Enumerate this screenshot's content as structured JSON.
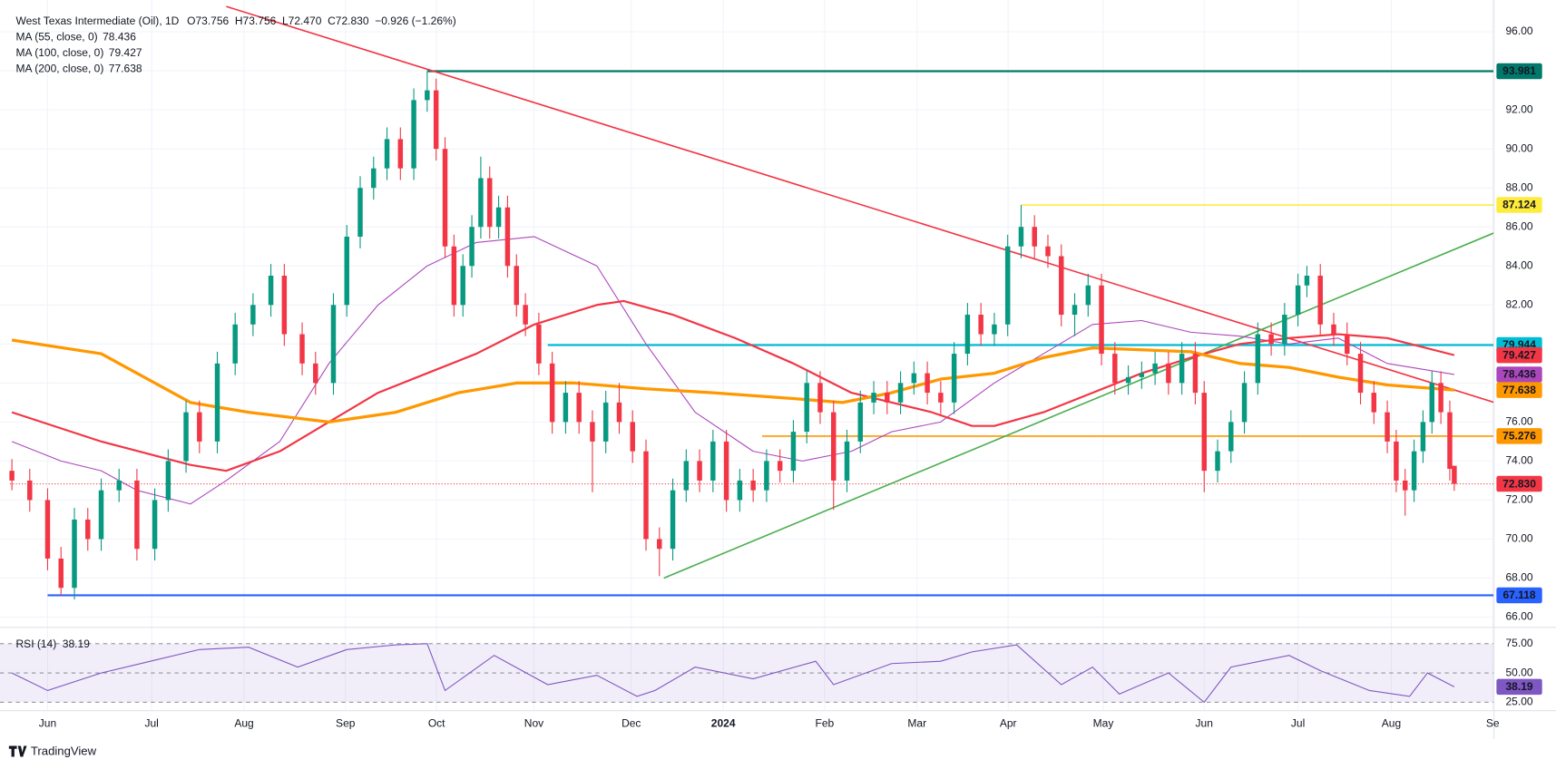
{
  "chart_data": {
    "type": "candlestick",
    "title": "West Texas Intermediate (Oil), 1D",
    "quote": "O73.756  H73.756  L72.470  C72.830  −0.926 (−1.26%)",
    "quote_color": "#f23645",
    "up_color": "#089981",
    "down_color": "#f23645",
    "grid": true,
    "xlim": [
      -8.44,
      323.78
    ],
    "ylim": [
      65.5,
      97.63
    ],
    "xticks": [
      {
        "value": 0,
        "label": "Jun"
      },
      {
        "value": 23.3,
        "label": "Jul"
      },
      {
        "value": 44,
        "label": "Aug"
      },
      {
        "value": 66.7,
        "label": "Sep"
      },
      {
        "value": 87.1,
        "label": "Oct"
      },
      {
        "value": 108.9,
        "label": "Nov"
      },
      {
        "value": 130.7,
        "label": "Dec"
      },
      {
        "value": 151.3,
        "label": "2024",
        "bold": true
      },
      {
        "value": 174,
        "label": "Feb"
      },
      {
        "value": 194.7,
        "label": "Mar"
      },
      {
        "value": 215.1,
        "label": "Apr"
      },
      {
        "value": 236.4,
        "label": "May"
      },
      {
        "value": 259,
        "label": "Jun"
      },
      {
        "value": 280,
        "label": "Jul"
      },
      {
        "value": 300.9,
        "label": "Aug"
      },
      {
        "value": 323.6,
        "label": "Se"
      }
    ],
    "yticks": [
      {
        "value": 66,
        "label": "66.00"
      },
      {
        "value": 68,
        "label": "68.00"
      },
      {
        "value": 70,
        "label": "70.00"
      },
      {
        "value": 72,
        "label": "72.00"
      },
      {
        "value": 74,
        "label": "74.00"
      },
      {
        "value": 76,
        "label": "76.00"
      },
      {
        "value": 78,
        "label": "78.00"
      },
      {
        "value": 80,
        "label": "80.00"
      },
      {
        "value": 82,
        "label": "82.00"
      },
      {
        "value": 84,
        "label": "84.00"
      },
      {
        "value": 86,
        "label": "86.00"
      },
      {
        "value": 88,
        "label": "88.00"
      },
      {
        "value": 90,
        "label": "90.00"
      },
      {
        "value": 92,
        "label": "92.00"
      },
      {
        "value": 94,
        "label": "94.00"
      },
      {
        "value": 96,
        "label": "96.00"
      }
    ],
    "candles": {
      "x": [
        -8,
        -4,
        0,
        3,
        6,
        9,
        12,
        16,
        20,
        24,
        27,
        31,
        34,
        38,
        42,
        46,
        50,
        53,
        57,
        60,
        64,
        67,
        70,
        73,
        76,
        79,
        82,
        85,
        87,
        89,
        91,
        93,
        95,
        97,
        99,
        101,
        103,
        105,
        107,
        110,
        113,
        116,
        119,
        122,
        125,
        128,
        131,
        134,
        137,
        140,
        143,
        146,
        149,
        152,
        155,
        158,
        161,
        164,
        167,
        170,
        173,
        176,
        179,
        182,
        185,
        188,
        191,
        194,
        197,
        200,
        203,
        206,
        209,
        212,
        215,
        218,
        221,
        224,
        227,
        230,
        233,
        236,
        239,
        242,
        245,
        248,
        251,
        254,
        257,
        259,
        262,
        265,
        268,
        271,
        274,
        277,
        280,
        282,
        285,
        288,
        291,
        294,
        297,
        300,
        302,
        304,
        306,
        308,
        310,
        312,
        314,
        315
      ],
      "ohlc": [
        [
          73.5,
          74.1,
          72.5,
          73
        ],
        [
          73,
          73.6,
          71.4,
          72
        ],
        [
          72,
          72.6,
          68.4,
          69
        ],
        [
          69,
          69.6,
          67.1,
          67.5
        ],
        [
          67.5,
          71.6,
          66.9,
          71
        ],
        [
          71,
          71.6,
          69.4,
          70
        ],
        [
          70,
          73.1,
          69.4,
          72.5
        ],
        [
          72.5,
          73.6,
          71.9,
          73
        ],
        [
          73,
          73.6,
          68.9,
          69.5
        ],
        [
          69.5,
          72.6,
          68.9,
          72
        ],
        [
          72,
          74.6,
          71.4,
          74
        ],
        [
          74,
          77.1,
          73.4,
          76.5
        ],
        [
          76.5,
          77.1,
          74.4,
          75
        ],
        [
          75,
          79.6,
          74.4,
          79
        ],
        [
          79,
          81.6,
          78.4,
          81
        ],
        [
          81,
          82.6,
          80.4,
          82
        ],
        [
          82,
          84.1,
          81.4,
          83.5
        ],
        [
          83.5,
          84.1,
          79.9,
          80.5
        ],
        [
          80.5,
          81.1,
          78.4,
          79
        ],
        [
          79,
          79.6,
          77.4,
          78
        ],
        [
          78,
          82.6,
          77.4,
          82
        ],
        [
          82,
          86.1,
          81.4,
          85.5
        ],
        [
          85.5,
          88.6,
          84.9,
          88
        ],
        [
          88,
          89.6,
          87.4,
          89
        ],
        [
          89,
          91.1,
          88.4,
          90.5
        ],
        [
          90.5,
          91.1,
          88.4,
          89
        ],
        [
          89,
          93.1,
          88.4,
          92.5
        ],
        [
          92.5,
          93.98,
          91.9,
          93
        ],
        [
          93,
          93.6,
          89.4,
          90
        ],
        [
          90,
          90.6,
          84.4,
          85
        ],
        [
          85,
          85.6,
          81.4,
          82
        ],
        [
          82,
          84.6,
          81.4,
          84
        ],
        [
          84,
          86.6,
          83.4,
          86
        ],
        [
          86,
          89.6,
          85.4,
          88.5
        ],
        [
          88.5,
          89.1,
          85.4,
          86
        ],
        [
          86,
          87.6,
          85.4,
          87
        ],
        [
          87,
          87.6,
          83.4,
          84
        ],
        [
          84,
          84.6,
          81.4,
          82
        ],
        [
          82,
          82.6,
          80.4,
          81
        ],
        [
          81,
          81.6,
          78.4,
          79
        ],
        [
          79,
          79.6,
          75.4,
          76
        ],
        [
          76,
          78.1,
          75.4,
          77.5
        ],
        [
          77.5,
          78.1,
          75.4,
          76
        ],
        [
          76,
          76.6,
          72.4,
          75
        ],
        [
          75,
          77.6,
          74.4,
          77
        ],
        [
          77,
          78,
          75.4,
          76
        ],
        [
          76,
          76.6,
          73.9,
          74.5
        ],
        [
          74.5,
          75.1,
          69.4,
          70
        ],
        [
          70,
          70.6,
          68.1,
          69.5
        ],
        [
          69.5,
          73.1,
          68.9,
          72.5
        ],
        [
          72.5,
          74.6,
          71.9,
          74
        ],
        [
          74,
          74.6,
          72.4,
          73
        ],
        [
          73,
          75.6,
          72.4,
          75
        ],
        [
          75,
          75.6,
          71.4,
          72
        ],
        [
          72,
          73.6,
          71.4,
          73
        ],
        [
          73,
          73.6,
          71.9,
          72.5
        ],
        [
          72.5,
          74.6,
          71.9,
          74
        ],
        [
          74,
          74.6,
          72.9,
          73.5
        ],
        [
          73.5,
          76.1,
          72.9,
          75.5
        ],
        [
          75.5,
          78.6,
          74.9,
          78
        ],
        [
          78,
          78.6,
          75.9,
          76.5
        ],
        [
          76.5,
          77.1,
          71.5,
          73
        ],
        [
          73,
          75.6,
          72.4,
          75
        ],
        [
          75,
          77.6,
          74.4,
          77
        ],
        [
          77,
          78.1,
          76.4,
          77.5
        ],
        [
          77.5,
          78.1,
          76.4,
          77
        ],
        [
          77,
          78.6,
          76.4,
          78
        ],
        [
          78,
          79.1,
          77.4,
          78.5
        ],
        [
          78.5,
          79.1,
          76.9,
          77.5
        ],
        [
          77.5,
          78.1,
          76.4,
          77
        ],
        [
          77,
          80.1,
          76.4,
          79.5
        ],
        [
          79.5,
          82.1,
          78.9,
          81.5
        ],
        [
          81.5,
          82.1,
          79.9,
          80.5
        ],
        [
          80.5,
          81.6,
          79.9,
          81
        ],
        [
          81,
          85.6,
          80.4,
          85
        ],
        [
          85,
          87.12,
          84.4,
          86
        ],
        [
          86,
          86.6,
          84.4,
          85
        ],
        [
          85,
          85.6,
          83.9,
          84.5
        ],
        [
          84.5,
          85.1,
          80.9,
          81.5
        ],
        [
          81.5,
          82.6,
          80.4,
          82
        ],
        [
          82,
          83.6,
          81.4,
          83
        ],
        [
          83,
          83.6,
          78.9,
          79.5
        ],
        [
          79.5,
          80.1,
          77.4,
          78
        ],
        [
          78,
          78.9,
          77.4,
          78.3
        ],
        [
          78.3,
          79.1,
          77.7,
          78.5
        ],
        [
          78.5,
          79.6,
          77.9,
          79
        ],
        [
          79,
          79.6,
          77.4,
          78
        ],
        [
          78,
          80.1,
          77.4,
          79.5
        ],
        [
          79.5,
          80.1,
          76.9,
          77.5
        ],
        [
          77.5,
          78.1,
          72.4,
          73.5
        ],
        [
          73.5,
          75.1,
          72.9,
          74.5
        ],
        [
          74.5,
          76.6,
          73.9,
          76
        ],
        [
          76,
          78.6,
          75.4,
          78
        ],
        [
          78,
          81.1,
          77.4,
          80.5
        ],
        [
          80.5,
          81.1,
          79.4,
          80
        ],
        [
          80,
          82.1,
          79.4,
          81.5
        ],
        [
          81.5,
          83.6,
          80.9,
          83
        ],
        [
          83,
          84,
          82.4,
          83.5
        ],
        [
          83.5,
          84.1,
          80.4,
          81
        ],
        [
          81,
          81.6,
          79.9,
          80.5
        ],
        [
          80.5,
          81.1,
          78.9,
          79.5
        ],
        [
          79.5,
          80.1,
          76.9,
          77.5
        ],
        [
          77.5,
          78.1,
          75.9,
          76.5
        ],
        [
          76.5,
          77.1,
          74.4,
          75
        ],
        [
          75,
          75.6,
          72.4,
          73
        ],
        [
          73,
          73.6,
          71.2,
          72.5
        ],
        [
          72.5,
          75.1,
          71.9,
          74.5
        ],
        [
          74.5,
          76.6,
          73.9,
          76
        ],
        [
          76,
          78.6,
          75.4,
          78
        ],
        [
          78,
          78.6,
          75.9,
          76.5
        ],
        [
          76.5,
          77.1,
          73,
          73.6
        ],
        [
          73.756,
          73.756,
          72.47,
          72.83
        ]
      ]
    },
    "moving_averages": [
      {
        "name": "MA (55, close, 0)",
        "last": 78.436,
        "color": "#ab47bc",
        "width": 1,
        "x": [
          -8,
          3,
          12,
          20,
          32,
          40,
          52,
          63,
          74,
          85,
          96,
          109,
          123,
          134,
          145,
          158,
          169,
          180,
          189,
          200,
          212,
          223,
          234,
          245,
          256,
          267,
          278,
          289,
          300,
          315
        ],
        "values": [
          75,
          74,
          73.5,
          72.5,
          71.8,
          73,
          75,
          79,
          82,
          84,
          85.2,
          85.5,
          84,
          80,
          76.5,
          74.5,
          74,
          74.5,
          75.5,
          76,
          78,
          79.5,
          81,
          81.2,
          80.6,
          80.4,
          80,
          80.3,
          79,
          78.436
        ]
      },
      {
        "name": "MA (100, close, 0)",
        "last": 79.427,
        "color": "#f23645",
        "width": 2,
        "x": [
          -8,
          12,
          32,
          40,
          52,
          63,
          74,
          85,
          96,
          109,
          123,
          129,
          140,
          154,
          167,
          180,
          189,
          198,
          207,
          212,
          223,
          234,
          245,
          256,
          267,
          278,
          289,
          300,
          315
        ],
        "values": [
          76.5,
          75,
          73.8,
          73.5,
          74.5,
          76,
          77.5,
          78.5,
          79.5,
          81,
          82,
          82.2,
          81.5,
          80.3,
          79,
          77.5,
          77,
          76.5,
          75.8,
          75.8,
          76.5,
          77.5,
          78.5,
          79.3,
          80,
          80.3,
          80.5,
          80.3,
          79.427
        ]
      },
      {
        "name": "MA (200, close, 0)",
        "last": 77.638,
        "color": "#ff9800",
        "width": 3,
        "x": [
          -8,
          12,
          32,
          45,
          63,
          78,
          92,
          105,
          118,
          134,
          149,
          167,
          178,
          189,
          200,
          212,
          223,
          234,
          245,
          256,
          267,
          278,
          289,
          300,
          315
        ],
        "values": [
          80.2,
          79.5,
          77,
          76.5,
          76,
          76.5,
          77.5,
          78,
          78,
          77.7,
          77.5,
          77.2,
          77,
          77.5,
          78.2,
          78.5,
          79.3,
          79.8,
          79.7,
          79.6,
          79,
          78.8,
          78.3,
          77.9,
          77.638
        ]
      }
    ],
    "levels": [
      {
        "value": 93.981,
        "color": "#00796b",
        "x_start": 85,
        "width": 2
      },
      {
        "value": 87.124,
        "color": "#ffeb3b",
        "text_color": "#131722",
        "x_start": 218,
        "width": 1.5
      },
      {
        "value": 79.944,
        "color": "#00bcd4",
        "x_start": 112,
        "width": 2
      },
      {
        "value": 75.276,
        "color": "#ff9800",
        "x_start": 160,
        "width": 1.5
      },
      {
        "value": 67.118,
        "color": "#2962ff",
        "x_start": 0,
        "width": 2
      },
      {
        "value": 72.83,
        "label": "72.830",
        "color": "#f23645",
        "x_start": -8.44,
        "width": 1,
        "dotted": true
      }
    ],
    "trendlines": [
      {
        "color": "#f23645",
        "x": [
          40,
          324
        ],
        "y": [
          97.3,
          77.0
        ]
      },
      {
        "color": "#4caf50",
        "x": [
          138,
          324
        ],
        "y": [
          68.0,
          85.7
        ]
      }
    ],
    "rsi": {
      "name": "RSI (14)",
      "last": 38.19,
      "color": "#7e57c2",
      "ylim": [
        18.2,
        82.6
      ],
      "yticks": [
        {
          "value": 25,
          "label": "25.00"
        },
        {
          "value": 50,
          "label": "50.00"
        },
        {
          "value": 75,
          "label": "75.00"
        }
      ],
      "x": [
        -8,
        0,
        12,
        23,
        34,
        45,
        56,
        67,
        78,
        85,
        89,
        100,
        112,
        123,
        132,
        136,
        145,
        158,
        172,
        176,
        189,
        200,
        207,
        217,
        227,
        234,
        240,
        251,
        259,
        265,
        278,
        285,
        296,
        305,
        309,
        315
      ],
      "values": [
        50,
        35,
        50,
        60,
        70,
        72,
        55,
        70,
        74,
        75,
        35,
        65,
        40,
        48,
        30,
        35,
        55,
        45,
        60,
        40,
        58,
        60,
        68,
        74,
        40,
        55,
        32,
        50,
        25,
        55,
        65,
        52,
        35,
        30,
        50,
        38.19
      ]
    },
    "brand": "TradingView"
  }
}
